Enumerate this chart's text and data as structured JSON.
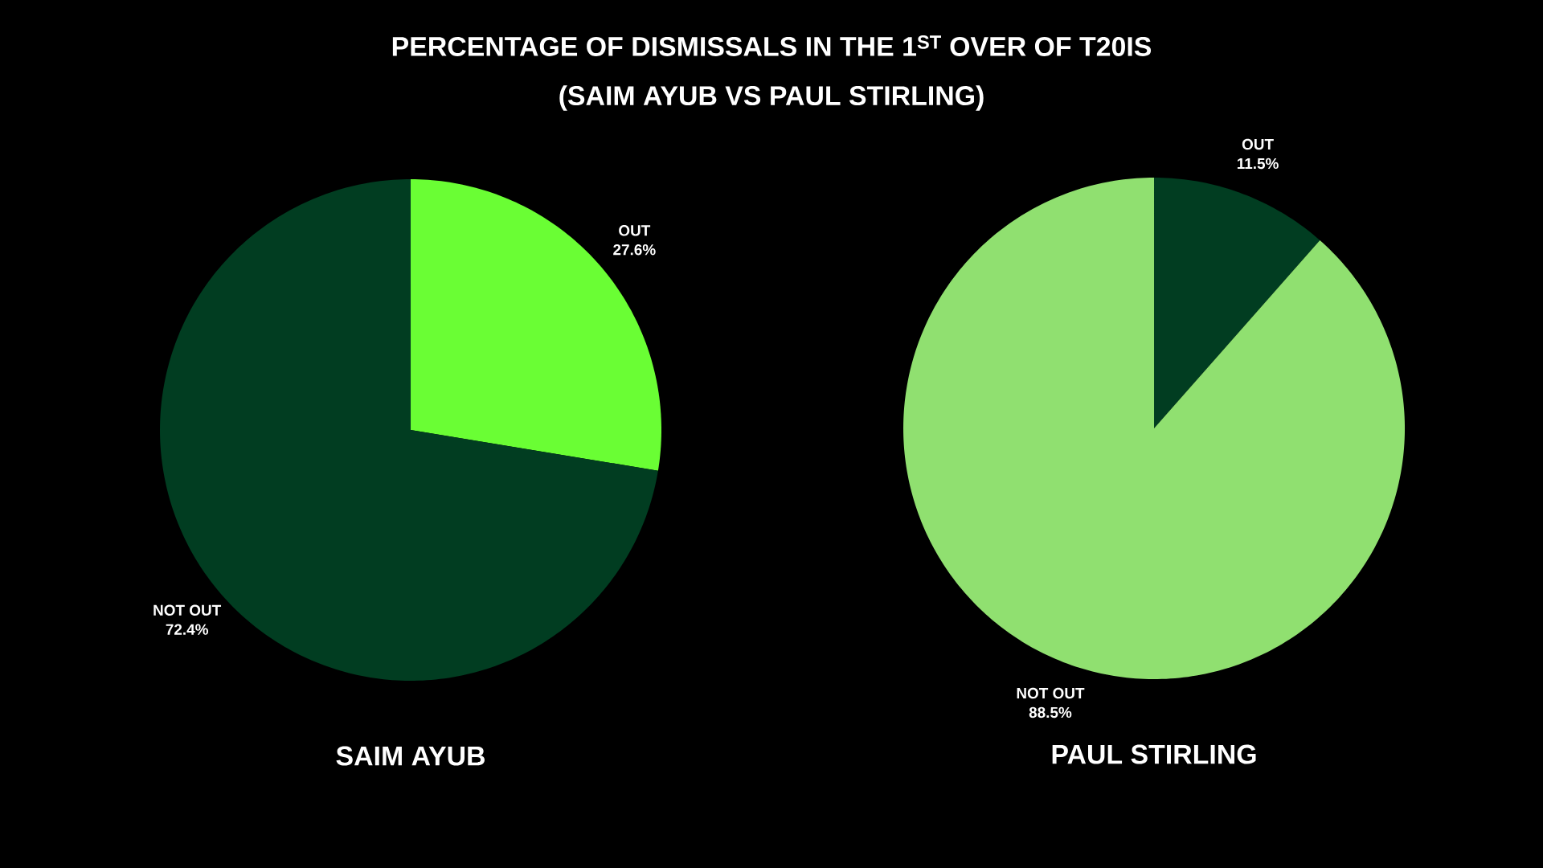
{
  "chart_data": [
    {
      "type": "pie",
      "title": "PERCENTAGE OF DISMISSALS IN THE 1$^{ST}$ OVER OF T20IS",
      "subtitle": "(SAIM AYUB VS PAUL STIRLING)",
      "xlabel": "SAIM AYUB",
      "categories": [
        "OUT",
        "NOT OUT"
      ],
      "values": [
        27.6,
        72.4
      ],
      "value_labels": [
        "27.6%",
        "72.4%"
      ],
      "colors": [
        "#6afe34",
        "#013d21"
      ]
    },
    {
      "type": "pie",
      "xlabel": "PAUL STIRLING",
      "categories": [
        "OUT",
        "NOT OUT"
      ],
      "values": [
        11.5,
        88.5
      ],
      "value_labels": [
        "11.5%",
        "88.5%"
      ],
      "colors": [
        "#013d21",
        "#90e070"
      ]
    }
  ]
}
